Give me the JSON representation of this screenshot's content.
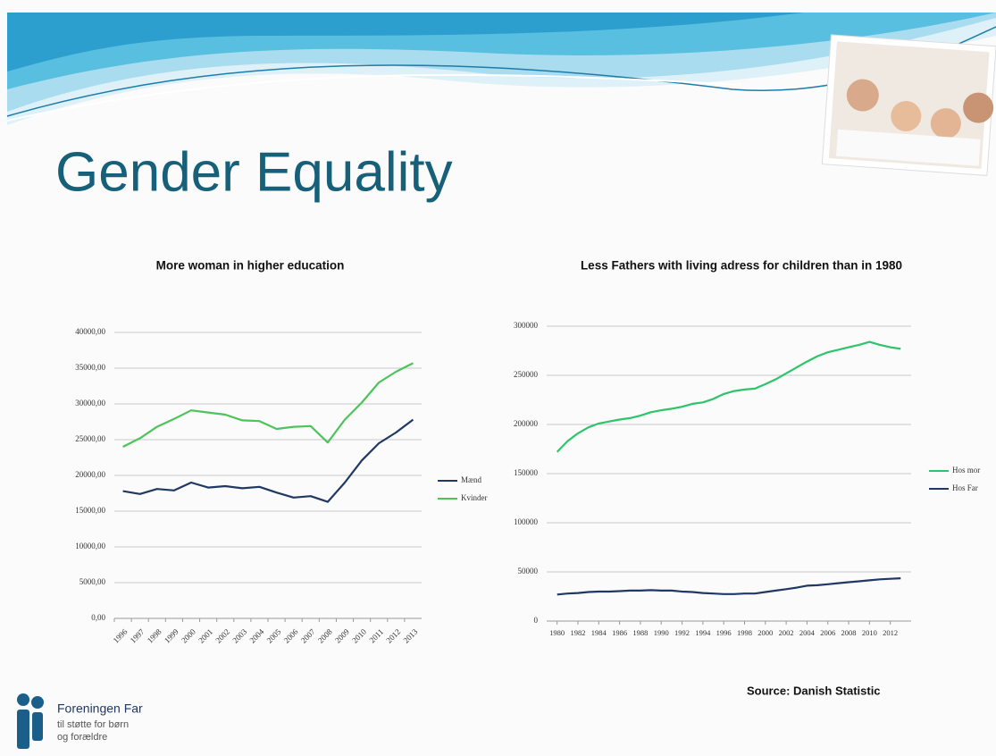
{
  "slide": {
    "title": "Gender Equality",
    "source": "Source: Danish Statistic",
    "logo": {
      "name": "Foreningen Far",
      "tagline": [
        "til støtte for børn",
        "og forældre"
      ]
    }
  },
  "chart_data": [
    {
      "type": "line",
      "title": "More woman in higher education",
      "categories": [
        "1996",
        "1997",
        "1998",
        "1999",
        "2000",
        "2001",
        "2002",
        "2003",
        "2004",
        "2005",
        "2006",
        "2007",
        "2008",
        "2009",
        "2010",
        "2011",
        "2012",
        "2013"
      ],
      "series": [
        {
          "name": "Mænd",
          "color": "#1f3864",
          "values": [
            17800,
            17400,
            18100,
            17900,
            19000,
            18300,
            18500,
            18200,
            18400,
            17600,
            16900,
            17100,
            16300,
            19000,
            22100,
            24500,
            26000,
            27800
          ]
        },
        {
          "name": "Kvinder",
          "color": "#4cc45a",
          "values": [
            24000,
            25200,
            26800,
            27900,
            29100,
            28800,
            28500,
            27700,
            27600,
            26500,
            26800,
            26900,
            24600,
            27800,
            30200,
            33000,
            34500,
            35700
          ]
        }
      ],
      "ylim": [
        0,
        40000
      ],
      "yticks": [
        {
          "value": 0,
          "label": "0,00"
        },
        {
          "value": 5000,
          "label": "5000,00"
        },
        {
          "value": 10000,
          "label": "10000,00"
        },
        {
          "value": 15000,
          "label": "15000,00"
        },
        {
          "value": 20000,
          "label": "20000,00"
        },
        {
          "value": 25000,
          "label": "25000,00"
        },
        {
          "value": 30000,
          "label": "30000,00"
        },
        {
          "value": 35000,
          "label": "35000,00"
        },
        {
          "value": 40000,
          "label": "40000,00"
        }
      ],
      "grid": true,
      "legend": "right"
    },
    {
      "type": "line",
      "title": "Less Fathers with living adress for children than in 1980",
      "x": [
        1980,
        1981,
        1982,
        1983,
        1984,
        1985,
        1986,
        1987,
        1988,
        1989,
        1990,
        1991,
        1992,
        1993,
        1994,
        1995,
        1996,
        1997,
        1998,
        1999,
        2000,
        2001,
        2002,
        2003,
        2004,
        2005,
        2006,
        2007,
        2008,
        2009,
        2010,
        2011,
        2012,
        2013
      ],
      "series": [
        {
          "name": "Hos mor",
          "color": "#2ec46a",
          "values": [
            172000,
            183000,
            191000,
            197000,
            201000,
            203000,
            205000,
            206500,
            209000,
            212500,
            214500,
            216000,
            218000,
            221000,
            222500,
            226000,
            231000,
            234000,
            235500,
            236500,
            241000,
            246000,
            252000,
            258000,
            264000,
            269500,
            273500,
            276000,
            278500,
            281000,
            284000,
            281000,
            278500,
            277000
          ]
        },
        {
          "name": "Hos Far",
          "color": "#1f3864",
          "values": [
            27000,
            28000,
            28500,
            29500,
            30000,
            30000,
            30500,
            31000,
            31000,
            31500,
            31000,
            31000,
            30000,
            29500,
            28500,
            28000,
            27500,
            27500,
            28000,
            28000,
            29500,
            31000,
            32500,
            34000,
            36000,
            36500,
            37500,
            38500,
            39500,
            40500,
            41500,
            42500,
            43000,
            43500
          ]
        }
      ],
      "xlim": [
        1979,
        2014
      ],
      "xticks": [
        1980,
        1982,
        1984,
        1986,
        1988,
        1990,
        1992,
        1994,
        1996,
        1998,
        2000,
        2002,
        2004,
        2006,
        2008,
        2010,
        2012
      ],
      "ylim": [
        0,
        300000
      ],
      "yticks": [
        0,
        50000,
        100000,
        150000,
        200000,
        250000,
        300000
      ],
      "grid": true,
      "legend": "right"
    }
  ]
}
